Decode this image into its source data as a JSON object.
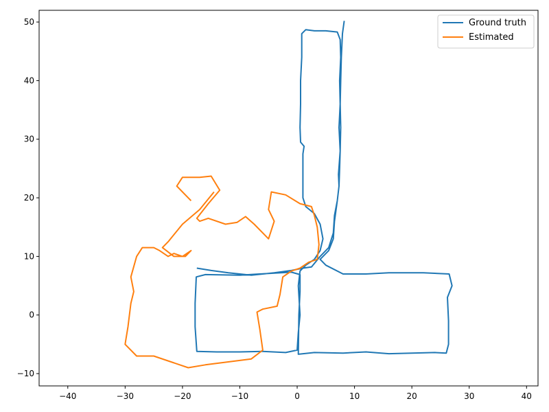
{
  "chart_data": {
    "type": "line",
    "title": "",
    "xlabel": "",
    "ylabel": "",
    "xlim": [
      -45,
      42
    ],
    "ylim": [
      -12.1,
      52
    ],
    "xticks": [
      -40,
      -30,
      -20,
      -10,
      0,
      10,
      20,
      30,
      40
    ],
    "yticks": [
      -10,
      0,
      10,
      20,
      30,
      40,
      50
    ],
    "grid": false,
    "legend_position": "top-right",
    "series": [
      {
        "name": "Ground truth",
        "color": "#1f77b4",
        "points": [
          [
            -17.5,
            8.0
          ],
          [
            -15.0,
            7.6
          ],
          [
            -12.0,
            7.2
          ],
          [
            -8.0,
            6.8
          ],
          [
            -4.0,
            7.2
          ],
          [
            -1.0,
            7.6
          ],
          [
            1.0,
            8.0
          ],
          [
            2.5,
            8.2
          ],
          [
            4.0,
            10.0
          ],
          [
            5.5,
            11.5
          ],
          [
            6.3,
            14.0
          ],
          [
            6.5,
            17.0
          ],
          [
            7.0,
            19.5
          ],
          [
            7.3,
            22.0
          ],
          [
            7.2,
            24.0
          ],
          [
            7.5,
            28.0
          ],
          [
            7.3,
            32.0
          ],
          [
            7.5,
            36.0
          ],
          [
            7.4,
            40.0
          ],
          [
            7.6,
            44.0
          ],
          [
            7.5,
            47.0
          ],
          [
            7.0,
            48.3
          ],
          [
            5.0,
            48.5
          ],
          [
            3.0,
            48.5
          ],
          [
            1.5,
            48.7
          ],
          [
            0.8,
            48.0
          ],
          [
            0.8,
            44.0
          ],
          [
            0.6,
            40.0
          ],
          [
            0.6,
            36.0
          ],
          [
            0.5,
            32.0
          ],
          [
            0.6,
            29.5
          ],
          [
            1.2,
            28.8
          ],
          [
            1.0,
            27.5
          ],
          [
            1.0,
            24.0
          ],
          [
            1.0,
            20.0
          ],
          [
            1.5,
            18.5
          ],
          [
            3.0,
            17.3
          ],
          [
            4.0,
            15.5
          ],
          [
            4.5,
            13.0
          ],
          [
            4.0,
            11.0
          ],
          [
            3.0,
            9.5
          ],
          [
            1.5,
            8.5
          ],
          [
            0.5,
            7.5
          ],
          [
            0.2,
            5.0
          ],
          [
            0.5,
            0.0
          ],
          [
            0.2,
            -3.0
          ],
          [
            0.0,
            -6.0
          ],
          [
            -2.0,
            -6.4
          ],
          [
            -6.0,
            -6.2
          ],
          [
            -10.0,
            -6.3
          ],
          [
            -14.0,
            -6.3
          ],
          [
            -17.5,
            -6.2
          ],
          [
            -17.8,
            -2.0
          ],
          [
            -17.8,
            2.0
          ],
          [
            -17.6,
            6.5
          ],
          [
            -16.0,
            6.9
          ],
          [
            -10.0,
            6.8
          ],
          [
            -5.0,
            7.1
          ],
          [
            -1.0,
            7.3
          ],
          [
            0.5,
            6.9
          ],
          [
            0.5,
            4.0
          ],
          [
            0.3,
            0.0
          ],
          [
            0.2,
            -6.7
          ],
          [
            3.0,
            -6.4
          ],
          [
            8.0,
            -6.5
          ],
          [
            12.0,
            -6.3
          ],
          [
            16.0,
            -6.6
          ],
          [
            20.0,
            -6.5
          ],
          [
            24.0,
            -6.4
          ],
          [
            26.0,
            -6.5
          ],
          [
            26.4,
            -5.0
          ],
          [
            26.4,
            -1.0
          ],
          [
            26.2,
            3.0
          ],
          [
            27.0,
            5.0
          ],
          [
            26.5,
            7.0
          ],
          [
            22.0,
            7.2
          ],
          [
            16.0,
            7.2
          ],
          [
            12.0,
            7.0
          ],
          [
            8.0,
            7.0
          ],
          [
            5.0,
            8.5
          ],
          [
            4.0,
            9.5
          ],
          [
            5.5,
            11.0
          ],
          [
            6.3,
            13.0
          ],
          [
            6.5,
            16.0
          ],
          [
            7.0,
            19.5
          ],
          [
            7.3,
            22.0
          ],
          [
            7.4,
            25.0
          ],
          [
            7.5,
            28.0
          ],
          [
            7.6,
            32.0
          ],
          [
            7.5,
            36.0
          ],
          [
            7.6,
            40.0
          ],
          [
            7.7,
            44.0
          ],
          [
            7.9,
            48.0
          ],
          [
            8.2,
            50.2
          ]
        ]
      },
      {
        "name": "Estimated",
        "color": "#ff7f0e",
        "points": [
          [
            -18.5,
            19.5
          ],
          [
            -21.0,
            22.0
          ],
          [
            -20.0,
            23.5
          ],
          [
            -17.0,
            23.5
          ],
          [
            -15.0,
            23.7
          ],
          [
            -13.5,
            21.3
          ],
          [
            -15.5,
            19.0
          ],
          [
            -17.5,
            16.5
          ],
          [
            -17.0,
            16.0
          ],
          [
            -15.5,
            16.5
          ],
          [
            -12.5,
            15.5
          ],
          [
            -10.5,
            15.8
          ],
          [
            -9.0,
            16.8
          ],
          [
            -7.5,
            15.5
          ],
          [
            -5.0,
            13.0
          ],
          [
            -4.0,
            16.0
          ],
          [
            -5.0,
            18.0
          ],
          [
            -4.5,
            21.0
          ],
          [
            -2.0,
            20.5
          ],
          [
            0.5,
            19.0
          ],
          [
            2.5,
            18.5
          ],
          [
            3.0,
            17.0
          ],
          [
            3.5,
            15.0
          ],
          [
            3.8,
            12.0
          ],
          [
            3.5,
            9.5
          ],
          [
            2.0,
            9.0
          ],
          [
            0.5,
            8.0
          ],
          [
            -1.0,
            7.5
          ],
          [
            -2.5,
            6.5
          ],
          [
            -3.0,
            3.5
          ],
          [
            -3.5,
            1.5
          ],
          [
            -6.0,
            1.0
          ],
          [
            -7.0,
            0.5
          ],
          [
            -6.5,
            -2.5
          ],
          [
            -6.0,
            -6.0
          ],
          [
            -8.0,
            -7.5
          ],
          [
            -12.0,
            -8.0
          ],
          [
            -16.0,
            -8.5
          ],
          [
            -19.0,
            -9.0
          ],
          [
            -22.0,
            -8.0
          ],
          [
            -25.0,
            -7.0
          ],
          [
            -28.0,
            -7.0
          ],
          [
            -30.0,
            -5.0
          ],
          [
            -29.5,
            -2.0
          ],
          [
            -29.0,
            2.0
          ],
          [
            -28.5,
            4.0
          ],
          [
            -29.0,
            6.5
          ],
          [
            -28.0,
            10.0
          ],
          [
            -27.0,
            11.5
          ],
          [
            -25.0,
            11.5
          ],
          [
            -24.0,
            11.0
          ],
          [
            -22.5,
            10.0
          ],
          [
            -21.5,
            10.5
          ],
          [
            -20.0,
            10.0
          ],
          [
            -18.5,
            11.0
          ],
          [
            -19.5,
            10.0
          ],
          [
            -21.5,
            10.0
          ],
          [
            -23.5,
            11.5
          ],
          [
            -22.5,
            12.5
          ],
          [
            -20.0,
            15.5
          ],
          [
            -17.0,
            18.0
          ],
          [
            -14.5,
            21.0
          ]
        ]
      }
    ]
  }
}
